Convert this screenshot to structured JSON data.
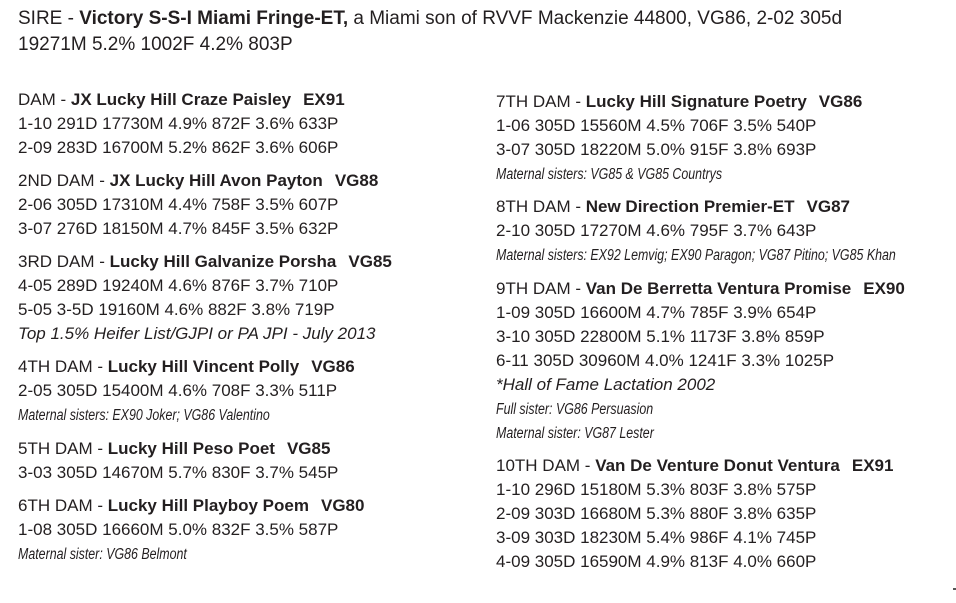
{
  "sire": {
    "prefix": "SIRE - ",
    "name": "Victory S-S-I Miami Fringe-ET,",
    "rest": " a Miami son of RVVF Mackenzie 44800, VG86, 2-02 305d",
    "line2": "19271M 5.2% 1002F 4.2% 803P"
  },
  "dams": [
    {
      "label": "DAM - ",
      "name": "JX Lucky Hill Craze Paisley",
      "score": "EX91",
      "lines": [
        "1-10 291D 17730M 4.9% 872F 3.6% 633P",
        "2-09 283D 16700M 5.2% 862F 3.6% 606P"
      ]
    },
    {
      "label": "2ND DAM - ",
      "name": "JX Lucky Hill Avon Payton",
      "score": "VG88",
      "lines": [
        "2-06 305D 17310M 4.4% 758F 3.5% 607P",
        "3-07 276D 18150M 4.7% 845F 3.5% 632P"
      ]
    },
    {
      "label": "3RD DAM - ",
      "name": "Lucky Hill Galvanize Porsha",
      "score": "VG85",
      "lines": [
        "4-05 289D 19240M 4.6% 876F 3.7% 710P",
        "5-05 3-5D 19160M 4.6% 882F 3.8% 719P"
      ],
      "remark": "Top 1.5% Heifer List/GJPI or PA JPI - July 2013"
    },
    {
      "label": "4TH DAM - ",
      "name": "Lucky Hill Vincent Polly",
      "score": "VG86",
      "lines": [
        "2-05 305D 15400M 4.6% 708F 3.3% 511P"
      ],
      "notes": [
        "Maternal sisters: EX90 Joker; VG86 Valentino"
      ]
    },
    {
      "label": "5TH DAM - ",
      "name": "Lucky Hill Peso Poet",
      "score": "VG85",
      "lines": [
        "3-03 305D 14670M 5.7% 830F 3.7% 545P"
      ]
    },
    {
      "label": "6TH DAM - ",
      "name": "Lucky Hill Playboy Poem",
      "score": "VG80",
      "lines": [
        "1-08 305D 16660M 5.0% 832F 3.5% 587P"
      ],
      "notes": [
        "Maternal sister: VG86 Belmont"
      ]
    },
    {
      "label": "7TH DAM - ",
      "name": "Lucky Hill Signature Poetry",
      "score": "VG86",
      "lines": [
        "1-06 305D 15560M 4.5% 706F 3.5% 540P",
        "3-07 305D 18220M 5.0% 915F 3.8% 693P"
      ],
      "notes": [
        "Maternal sisters: VG85 & VG85 Countrys"
      ]
    },
    {
      "label": "8TH DAM - ",
      "name": "New Direction Premier-ET",
      "score": "VG87",
      "lines": [
        "2-10 305D 17270M 4.6% 795F 3.7% 643P"
      ],
      "notes": [
        "Maternal sisters: EX92 Lemvig; EX90 Paragon; VG87 Pitino; VG85 Khan"
      ]
    },
    {
      "label": "9TH DAM - ",
      "name": "Van De Berretta Ventura Promise",
      "score": "EX90",
      "lines": [
        "1-09 305D 16600M 4.7% 785F 3.9% 654P",
        "3-10 305D 22800M 5.1% 1173F 3.8% 859P",
        "6-11 305D 30960M 4.0% 1241F 3.3% 1025P"
      ],
      "remark": "*Hall of Fame Lactation 2002",
      "notes": [
        "Full sister: VG86 Persuasion",
        "Maternal sister: VG87 Lester"
      ]
    },
    {
      "label": "10TH DAM - ",
      "name": "Van De Venture Donut Ventura",
      "score": "EX91",
      "lines": [
        "1-10 296D 15180M 5.3% 803F 3.8% 575P",
        "2-09 303D 16680M 5.3% 880F 3.8% 635P",
        "3-09 303D 18230M 5.4% 986F 4.1% 745P",
        "4-09 305D 16590M 4.9% 813F 4.0% 660P"
      ]
    }
  ]
}
